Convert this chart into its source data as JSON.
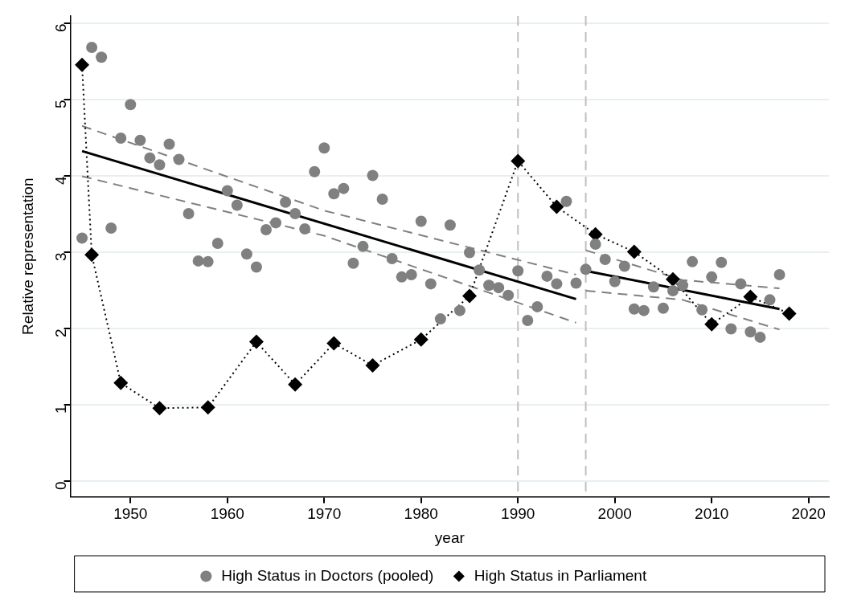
{
  "chart_data": {
    "type": "scatter",
    "xlabel": "year",
    "ylabel": "Relative representation",
    "xlim": [
      1943.8,
      2022.1
    ],
    "xticks": [
      1950,
      1960,
      1970,
      1980,
      1990,
      2000,
      2010,
      2020
    ],
    "ylim": [
      -0.2,
      6.1
    ],
    "yticks": [
      0,
      1,
      2,
      3,
      4,
      5,
      6
    ],
    "grid": "y",
    "legend": "bottom",
    "ref_lines": [
      {
        "axis": "x",
        "value": 1990,
        "color": "#c0c0c0",
        "line_style": "dashed"
      },
      {
        "axis": "x",
        "value": 1997,
        "color": "#c0c0c0",
        "line_style": "dashed"
      }
    ],
    "series": [
      {
        "name": "High Status in Doctors (pooled)",
        "type": "scatter",
        "color": "#808080",
        "marker": "circle",
        "x": [
          1945,
          1946,
          1947,
          1948,
          1949,
          1950,
          1951,
          1952,
          1953,
          1954,
          1955,
          1956,
          1957,
          1958,
          1959,
          1960,
          1961,
          1962,
          1963,
          1964,
          1965,
          1966,
          1967,
          1968,
          1969,
          1970,
          1971,
          1972,
          1973,
          1974,
          1975,
          1976,
          1977,
          1978,
          1979,
          1980,
          1981,
          1982,
          1983,
          1984,
          1985,
          1986,
          1987,
          1988,
          1989,
          1990,
          1991,
          1992,
          1993,
          1994,
          1995,
          1996,
          1997,
          1998,
          1999,
          2000,
          2001,
          2002,
          2003,
          2004,
          2005,
          2006,
          2007,
          2008,
          2009,
          2010,
          2011,
          2012,
          2013,
          2014,
          2015,
          2016,
          2017
        ],
        "values": [
          3.19,
          5.69,
          5.56,
          3.32,
          4.5,
          4.94,
          4.47,
          4.24,
          4.15,
          4.42,
          4.22,
          3.51,
          2.89,
          2.88,
          3.12,
          3.81,
          3.62,
          2.98,
          2.81,
          3.3,
          3.39,
          3.66,
          3.51,
          3.31,
          4.06,
          4.37,
          3.77,
          3.84,
          2.86,
          3.08,
          4.01,
          3.7,
          2.92,
          2.68,
          2.71,
          3.41,
          2.59,
          2.13,
          3.36,
          2.24,
          3.0,
          2.77,
          2.57,
          2.54,
          2.44,
          2.76,
          2.11,
          2.29,
          2.69,
          2.59,
          3.67,
          2.6,
          2.78,
          3.11,
          2.91,
          2.62,
          2.82,
          2.26,
          2.24,
          2.55,
          2.27,
          2.5,
          2.57,
          2.88,
          2.25,
          2.68,
          2.87,
          2.0,
          2.59,
          1.96,
          1.89,
          2.38,
          2.71
        ]
      },
      {
        "name": "High Status in Parliament",
        "type": "line",
        "color": "#000000",
        "marker": "diamond",
        "line_style": "dotted",
        "x": [
          1945,
          1946,
          1949,
          1953,
          1958,
          1963,
          1967,
          1971,
          1975,
          1980,
          1985,
          1990,
          1994,
          1998,
          2002,
          2006,
          2010,
          2014,
          2018
        ],
        "values": [
          5.46,
          2.97,
          1.29,
          0.96,
          0.97,
          1.83,
          1.27,
          1.81,
          1.52,
          1.86,
          2.43,
          4.2,
          3.6,
          3.24,
          3.01,
          2.65,
          2.06,
          2.42,
          2.2
        ]
      },
      {
        "type": "line",
        "color": "#000000",
        "marker": "none",
        "line_style": "solid",
        "x": [
          1945,
          1996
        ],
        "values": [
          4.33,
          2.39
        ]
      },
      {
        "type": "line",
        "color": "#808080",
        "marker": "none",
        "line_style": "dashed",
        "x": [
          1945,
          1970,
          1996
        ],
        "values": [
          4.66,
          3.55,
          2.71
        ]
      },
      {
        "type": "line",
        "color": "#808080",
        "marker": "none",
        "line_style": "dashed",
        "x": [
          1945,
          1970,
          1996
        ],
        "values": [
          4.0,
          3.22,
          2.08
        ]
      },
      {
        "type": "line",
        "color": "#000000",
        "marker": "none",
        "line_style": "solid",
        "x": [
          1997,
          2017
        ],
        "values": [
          2.76,
          2.26
        ]
      },
      {
        "type": "line",
        "color": "#808080",
        "marker": "none",
        "line_style": "dashed",
        "x": [
          1997,
          2007,
          2017
        ],
        "values": [
          3.03,
          2.64,
          2.53
        ]
      },
      {
        "type": "line",
        "color": "#808080",
        "marker": "none",
        "line_style": "dashed",
        "x": [
          1997,
          2007,
          2017
        ],
        "values": [
          2.5,
          2.38,
          1.99
        ]
      }
    ]
  }
}
